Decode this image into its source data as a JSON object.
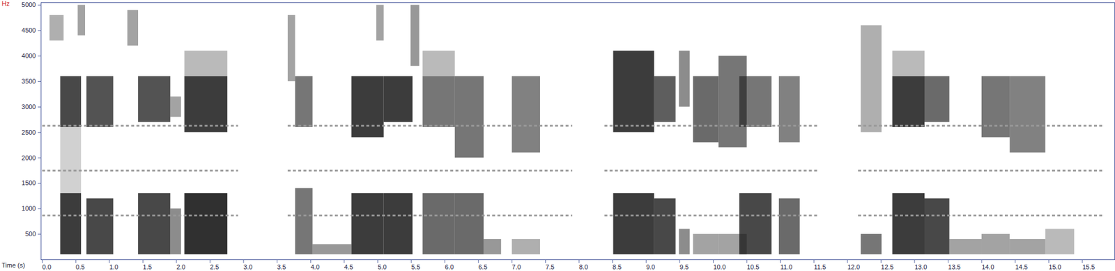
{
  "chart_data": {
    "type": "spectrogram",
    "x_label": "Time (s)",
    "y_label": "Hz",
    "xlim": [
      0,
      16
    ],
    "ylim": [
      0,
      5050
    ],
    "xticks": [
      {
        "value": 0,
        "label": "0.0"
      },
      0.5,
      {
        "value": 1,
        "label": "1.0"
      },
      1.5,
      {
        "value": 2,
        "label": "2.0"
      },
      2.5,
      {
        "value": 3,
        "label": "3.0"
      },
      3.5,
      {
        "value": 4,
        "label": "4.0"
      },
      4.5,
      {
        "value": 5,
        "label": "5.0"
      },
      5.5,
      {
        "value": 6,
        "label": "6.0"
      },
      6.5,
      {
        "value": 7,
        "label": "7.0"
      },
      7.5,
      {
        "value": 8,
        "label": "8.0"
      },
      8.5,
      {
        "value": 9,
        "label": "9.0"
      },
      9.5,
      {
        "value": 10,
        "label": "10.0"
      },
      10.5,
      {
        "value": 11,
        "label": "11.0"
      },
      11.5,
      {
        "value": 12,
        "label": "12.0"
      },
      12.5,
      {
        "value": 13,
        "label": "13.0"
      },
      13.5,
      {
        "value": 14,
        "label": "14.0"
      },
      14.5,
      {
        "value": 15,
        "label": "15.0"
      },
      15.5
    ],
    "yticks": [
      500,
      1000,
      1500,
      2000,
      2500,
      3000,
      3500,
      4000,
      4500,
      5000
    ],
    "energy": [
      {
        "t0": 0.13,
        "t1": 0.34,
        "f0": 4300,
        "f1": 4800,
        "level": 0.35
      },
      {
        "t0": 0.55,
        "t1": 0.66,
        "f0": 4400,
        "f1": 5000,
        "level": 0.4
      },
      {
        "t0": 1.29,
        "t1": 1.45,
        "f0": 4200,
        "f1": 4900,
        "level": 0.4
      },
      {
        "t0": 0.29,
        "t1": 0.6,
        "f0": 100,
        "f1": 1300,
        "level": 0.85
      },
      {
        "t0": 0.29,
        "t1": 0.6,
        "f0": 2600,
        "f1": 3600,
        "level": 0.8
      },
      {
        "t0": 0.29,
        "t1": 0.6,
        "f0": 1300,
        "f1": 2600,
        "level": 0.2
      },
      {
        "t0": 0.68,
        "t1": 1.08,
        "f0": 100,
        "f1": 1200,
        "level": 0.8
      },
      {
        "t0": 0.68,
        "t1": 1.08,
        "f0": 2600,
        "f1": 3600,
        "level": 0.75
      },
      {
        "t0": 1.45,
        "t1": 1.93,
        "f0": 100,
        "f1": 1300,
        "level": 0.8
      },
      {
        "t0": 1.45,
        "t1": 1.93,
        "f0": 2700,
        "f1": 3600,
        "level": 0.75
      },
      {
        "t0": 1.93,
        "t1": 2.09,
        "f0": 100,
        "f1": 1000,
        "level": 0.5
      },
      {
        "t0": 1.93,
        "t1": 2.09,
        "f0": 2800,
        "f1": 3200,
        "level": 0.4
      },
      {
        "t0": 2.14,
        "t1": 2.78,
        "f0": 100,
        "f1": 1300,
        "level": 0.9
      },
      {
        "t0": 2.14,
        "t1": 2.78,
        "f0": 2500,
        "f1": 3600,
        "level": 0.85
      },
      {
        "t0": 2.14,
        "t1": 2.78,
        "f0": 3600,
        "f1": 4100,
        "level": 0.3
      },
      {
        "t0": 3.68,
        "t1": 3.79,
        "f0": 3500,
        "f1": 4800,
        "level": 0.4
      },
      {
        "t0": 3.79,
        "t1": 4.05,
        "f0": 100,
        "f1": 1400,
        "level": 0.6
      },
      {
        "t0": 3.79,
        "t1": 4.05,
        "f0": 2600,
        "f1": 3600,
        "level": 0.6
      },
      {
        "t0": 4.05,
        "t1": 4.63,
        "f0": 100,
        "f1": 300,
        "level": 0.45
      },
      {
        "t0": 4.63,
        "t1": 5.11,
        "f0": 100,
        "f1": 1300,
        "level": 0.85
      },
      {
        "t0": 4.63,
        "t1": 5.11,
        "f0": 2400,
        "f1": 3600,
        "level": 0.85
      },
      {
        "t0": 5.0,
        "t1": 5.11,
        "f0": 4300,
        "f1": 5000,
        "level": 0.4
      },
      {
        "t0": 5.11,
        "t1": 5.54,
        "f0": 100,
        "f1": 1300,
        "level": 0.85
      },
      {
        "t0": 5.11,
        "t1": 5.54,
        "f0": 2700,
        "f1": 3600,
        "level": 0.85
      },
      {
        "t0": 5.51,
        "t1": 5.64,
        "f0": 3800,
        "f1": 5000,
        "level": 0.45
      },
      {
        "t0": 5.69,
        "t1": 6.17,
        "f0": 100,
        "f1": 1300,
        "level": 0.65
      },
      {
        "t0": 5.69,
        "t1": 6.17,
        "f0": 2600,
        "f1": 3600,
        "level": 0.6
      },
      {
        "t0": 5.69,
        "t1": 6.17,
        "f0": 3600,
        "f1": 4100,
        "level": 0.3
      },
      {
        "t0": 6.17,
        "t1": 6.6,
        "f0": 100,
        "f1": 1300,
        "level": 0.65
      },
      {
        "t0": 6.17,
        "t1": 6.6,
        "f0": 2000,
        "f1": 3600,
        "level": 0.6
      },
      {
        "t0": 6.6,
        "t1": 6.86,
        "f0": 100,
        "f1": 400,
        "level": 0.45
      },
      {
        "t0": 7.02,
        "t1": 7.44,
        "f0": 100,
        "f1": 400,
        "level": 0.35
      },
      {
        "t0": 7.02,
        "t1": 7.44,
        "f0": 2100,
        "f1": 3600,
        "level": 0.55
      },
      {
        "t0": 8.53,
        "t1": 9.14,
        "f0": 100,
        "f1": 1300,
        "level": 0.85
      },
      {
        "t0": 8.53,
        "t1": 9.14,
        "f0": 2500,
        "f1": 4100,
        "level": 0.85
      },
      {
        "t0": 9.14,
        "t1": 9.46,
        "f0": 100,
        "f1": 1200,
        "level": 0.8
      },
      {
        "t0": 9.14,
        "t1": 9.46,
        "f0": 2700,
        "f1": 3600,
        "level": 0.7
      },
      {
        "t0": 9.51,
        "t1": 9.67,
        "f0": 3000,
        "f1": 4100,
        "level": 0.5
      },
      {
        "t0": 9.51,
        "t1": 9.67,
        "f0": 100,
        "f1": 600,
        "level": 0.5
      },
      {
        "t0": 9.72,
        "t1": 10.1,
        "f0": 100,
        "f1": 500,
        "level": 0.4
      },
      {
        "t0": 9.72,
        "t1": 10.1,
        "f0": 2300,
        "f1": 3600,
        "level": 0.65
      },
      {
        "t0": 10.1,
        "t1": 10.52,
        "f0": 100,
        "f1": 500,
        "level": 0.4
      },
      {
        "t0": 10.1,
        "t1": 10.52,
        "f0": 2200,
        "f1": 4000,
        "level": 0.6
      },
      {
        "t0": 10.41,
        "t1": 10.89,
        "f0": 100,
        "f1": 1300,
        "level": 0.8
      },
      {
        "t0": 10.41,
        "t1": 10.89,
        "f0": 2600,
        "f1": 3600,
        "level": 0.6
      },
      {
        "t0": 11.0,
        "t1": 11.31,
        "f0": 100,
        "f1": 1200,
        "level": 0.65
      },
      {
        "t0": 11.0,
        "t1": 11.31,
        "f0": 2300,
        "f1": 3600,
        "level": 0.55
      },
      {
        "t0": 12.22,
        "t1": 12.53,
        "f0": 100,
        "f1": 500,
        "level": 0.6
      },
      {
        "t0": 12.22,
        "t1": 12.53,
        "f0": 2500,
        "f1": 4600,
        "level": 0.35
      },
      {
        "t0": 12.69,
        "t1": 13.17,
        "f0": 100,
        "f1": 1300,
        "level": 0.85
      },
      {
        "t0": 12.69,
        "t1": 13.17,
        "f0": 2600,
        "f1": 3600,
        "level": 0.85
      },
      {
        "t0": 12.69,
        "t1": 13.17,
        "f0": 3600,
        "f1": 4100,
        "level": 0.3
      },
      {
        "t0": 13.17,
        "t1": 13.54,
        "f0": 100,
        "f1": 1200,
        "level": 0.8
      },
      {
        "t0": 13.17,
        "t1": 13.54,
        "f0": 2700,
        "f1": 3600,
        "level": 0.65
      },
      {
        "t0": 13.54,
        "t1": 14.02,
        "f0": 100,
        "f1": 400,
        "level": 0.4
      },
      {
        "t0": 14.02,
        "t1": 14.44,
        "f0": 100,
        "f1": 500,
        "level": 0.4
      },
      {
        "t0": 14.02,
        "t1": 14.44,
        "f0": 2400,
        "f1": 3600,
        "level": 0.6
      },
      {
        "t0": 14.44,
        "t1": 14.97,
        "f0": 100,
        "f1": 400,
        "level": 0.4
      },
      {
        "t0": 14.44,
        "t1": 14.97,
        "f0": 2100,
        "f1": 3600,
        "level": 0.55
      },
      {
        "t0": 14.97,
        "t1": 15.4,
        "f0": 100,
        "f1": 600,
        "level": 0.3
      }
    ],
    "reference_lines": [
      {
        "value": 2630,
        "spans": [
          [
            0.02,
            2.94
          ],
          [
            3.68,
            7.92
          ],
          [
            8.4,
            11.58
          ],
          [
            12.18,
            15.82
          ]
        ]
      },
      {
        "value": 1750,
        "spans": [
          [
            0.02,
            2.94
          ],
          [
            3.68,
            7.92
          ],
          [
            8.4,
            11.58
          ],
          [
            12.18,
            15.82
          ]
        ]
      },
      {
        "value": 870,
        "spans": [
          [
            0.02,
            2.94
          ],
          [
            3.68,
            7.92
          ],
          [
            8.4,
            11.58
          ],
          [
            12.18,
            15.82
          ]
        ]
      }
    ]
  }
}
